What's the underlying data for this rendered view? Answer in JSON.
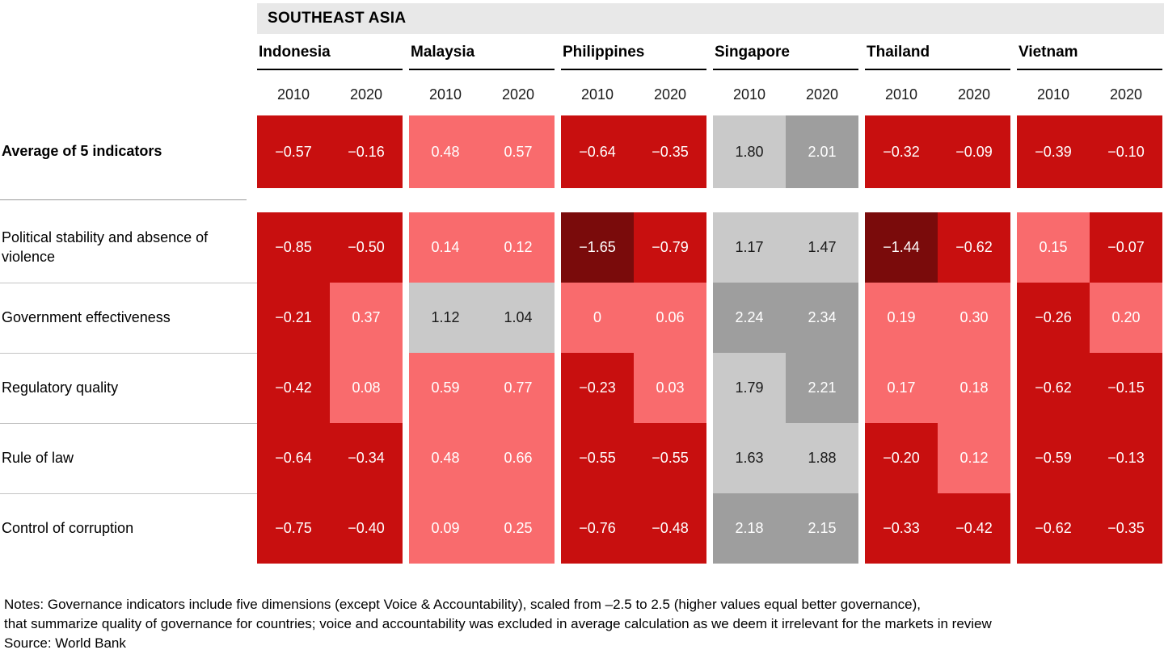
{
  "palette": {
    "darkred": "#7a0b0b",
    "red": "#c80f0f",
    "salmon": "#f96b6d",
    "lightgray": "#c9c9c9",
    "midgray": "#9e9e9e",
    "header_bg": "#e8e8e8",
    "text_on_dark": "#ffffff",
    "text_on_light": "#1a1a1a"
  },
  "chart_data": {
    "type": "heatmap",
    "title": "SOUTHEAST ASIA",
    "columns": [
      "Indonesia",
      "Malaysia",
      "Philippines",
      "Singapore",
      "Thailand",
      "Vietnam"
    ],
    "years": [
      "2010",
      "2020"
    ],
    "value_range": [
      -2.5,
      2.5
    ],
    "rows": [
      {
        "label": "Average of 5 indicators",
        "bold": true,
        "values": [
          [
            "−0.57",
            "−0.16"
          ],
          [
            "0.48",
            "0.57"
          ],
          [
            "−0.64",
            "−0.35"
          ],
          [
            "1.80",
            "2.01"
          ],
          [
            "−0.32",
            "−0.09"
          ],
          [
            "−0.39",
            "−0.10"
          ]
        ]
      },
      {
        "label": "Political stability and absence of violence",
        "bold": false,
        "values": [
          [
            "−0.85",
            "−0.50"
          ],
          [
            "0.14",
            "0.12"
          ],
          [
            "−1.65",
            "−0.79"
          ],
          [
            "1.17",
            "1.47"
          ],
          [
            "−1.44",
            "−0.62"
          ],
          [
            "0.15",
            "−0.07"
          ]
        ]
      },
      {
        "label": "Government effectiveness",
        "bold": false,
        "values": [
          [
            "−0.21",
            "0.37"
          ],
          [
            "1.12",
            "1.04"
          ],
          [
            "0",
            "0.06"
          ],
          [
            "2.24",
            "2.34"
          ],
          [
            "0.19",
            "0.30"
          ],
          [
            "−0.26",
            "0.20"
          ]
        ]
      },
      {
        "label": "Regulatory quality",
        "bold": false,
        "values": [
          [
            "−0.42",
            "0.08"
          ],
          [
            "0.59",
            "0.77"
          ],
          [
            "−0.23",
            "0.03"
          ],
          [
            "1.79",
            "2.21"
          ],
          [
            "0.17",
            "0.18"
          ],
          [
            "−0.62",
            "−0.15"
          ]
        ]
      },
      {
        "label": "Rule of law",
        "bold": false,
        "values": [
          [
            "−0.64",
            "−0.34"
          ],
          [
            "0.48",
            "0.66"
          ],
          [
            "−0.55",
            "−0.55"
          ],
          [
            "1.63",
            "1.88"
          ],
          [
            "−0.20",
            "0.12"
          ],
          [
            "−0.59",
            "−0.13"
          ]
        ]
      },
      {
        "label": "Control of corruption",
        "bold": false,
        "values": [
          [
            "−0.75",
            "−0.40"
          ],
          [
            "0.09",
            "0.25"
          ],
          [
            "−0.76",
            "−0.48"
          ],
          [
            "2.18",
            "2.15"
          ],
          [
            "−0.33",
            "−0.42"
          ],
          [
            "−0.62",
            "−0.35"
          ]
        ]
      }
    ]
  },
  "notes": {
    "line1": "Notes: Governance indicators include five dimensions (except Voice & Accountability), scaled from –2.5 to 2.5 (higher values equal better governance),",
    "line2": "that summarize quality of governance for countries; voice and accountability was excluded in average calculation as we deem it irrelevant for the markets in review",
    "source": "Source: World Bank"
  }
}
